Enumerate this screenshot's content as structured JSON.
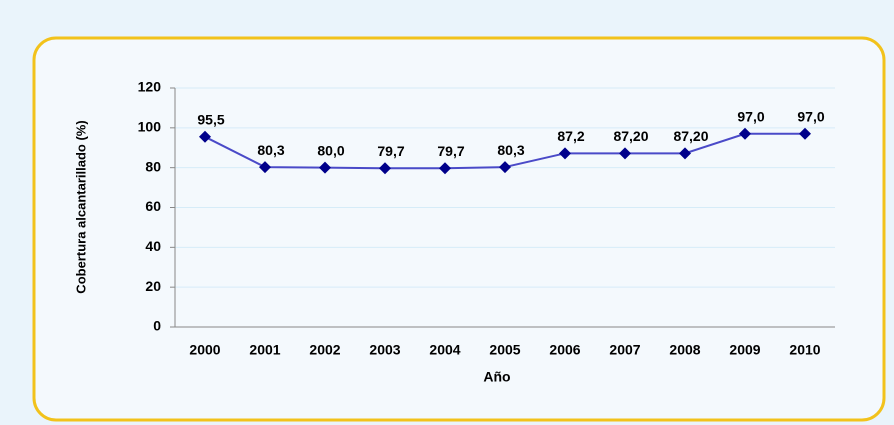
{
  "chart_data": {
    "type": "line",
    "x_label": "Año",
    "y_label": "Cobertura alcantarillado (%)",
    "categories": [
      "2000",
      "2001",
      "2002",
      "2003",
      "2004",
      "2005",
      "2006",
      "2007",
      "2008",
      "2009",
      "2010"
    ],
    "values": [
      95.5,
      80.3,
      80.0,
      79.7,
      79.7,
      80.3,
      87.2,
      87.2,
      87.2,
      97.0,
      97.0
    ],
    "value_labels": [
      "95,5",
      "80,3",
      "80,0",
      "79,7",
      "79,7",
      "80,3",
      "87,2",
      "87,20",
      "87,20",
      "97,0",
      "97,0"
    ],
    "color": "#00008b",
    "line_color": "#4a4ac8",
    "ylim": [
      0,
      120
    ],
    "yticks": [
      0,
      20,
      40,
      60,
      80,
      100,
      120
    ],
    "grid": true
  }
}
